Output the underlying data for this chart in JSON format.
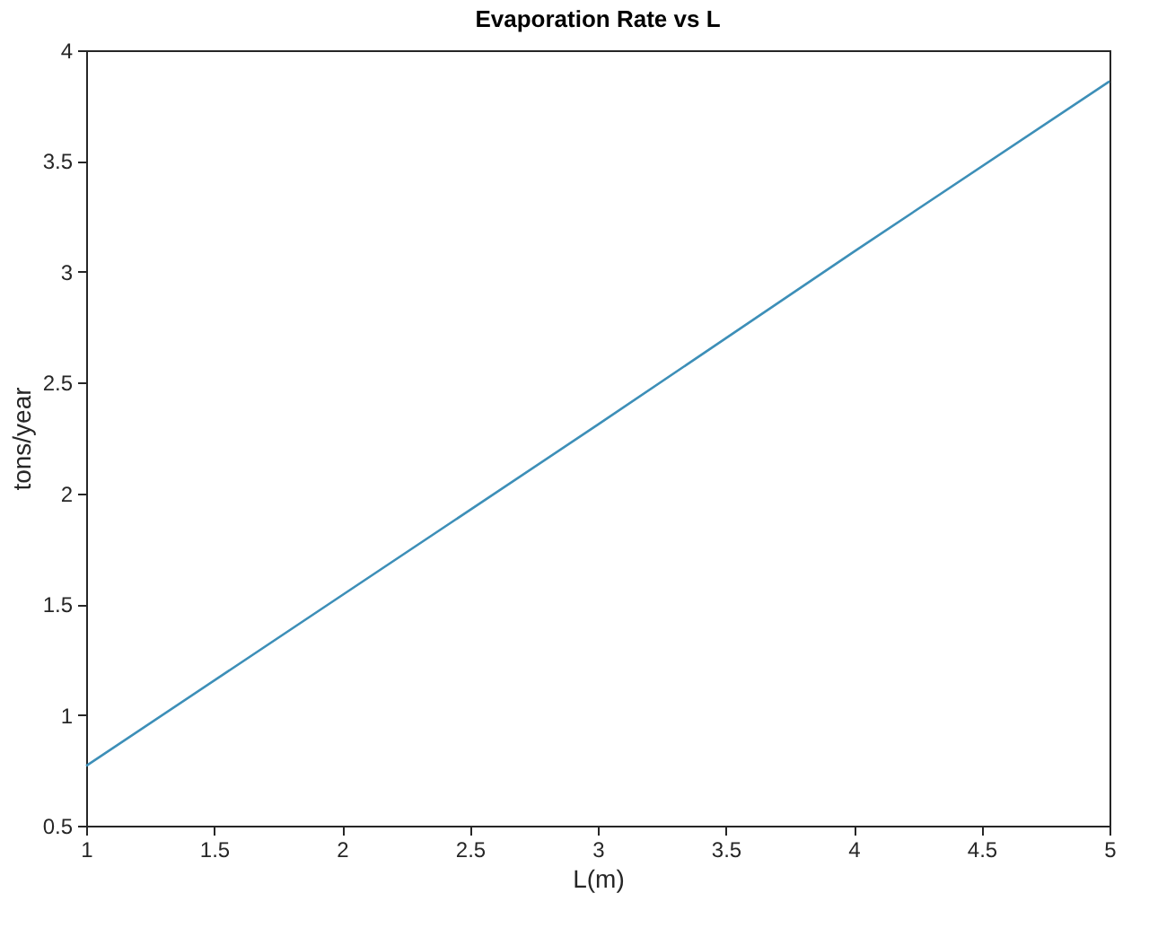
{
  "chart_data": {
    "type": "line",
    "title": "Evaporation Rate vs L",
    "xlabel": "L(m)",
    "ylabel": "tons/year",
    "x": [
      1,
      2,
      3,
      4,
      5
    ],
    "series": [
      {
        "color": "#3d8fb8",
        "values": [
          0.77,
          1.54,
          2.31,
          3.09,
          3.86
        ]
      }
    ],
    "xlim": [
      1,
      5
    ],
    "xticks": [
      1,
      1.5,
      2,
      2.5,
      3,
      3.5,
      4,
      4.5,
      5
    ],
    "ylim": [
      0.5,
      4
    ],
    "yticks": [
      0.5,
      1,
      1.5,
      2,
      2.5,
      3,
      3.5,
      4
    ],
    "grid": false,
    "legend": false
  }
}
